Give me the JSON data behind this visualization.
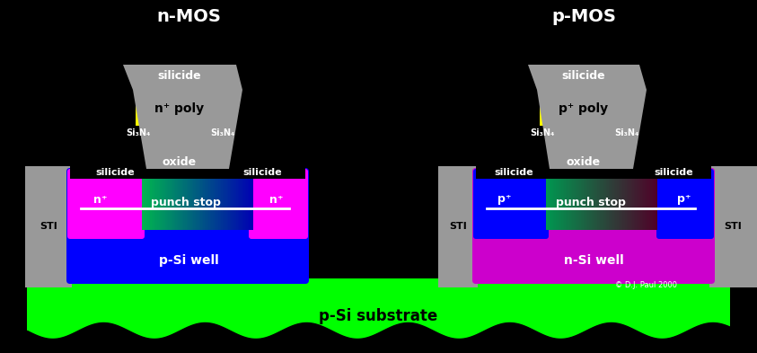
{
  "bg_color": "#000000",
  "substrate_color": "#00ff00",
  "nmos_well_color": "#0000ff",
  "pmos_well_color": "#cc00cc",
  "magenta_color": "#ff00ff",
  "blue_color": "#0000ff",
  "gray_color": "#999999",
  "yellow_color": "#ffff00",
  "nmos_title": "n-MOS",
  "pmos_title": "p-MOS",
  "substrate_label": "p-Si substrate",
  "nmos_well_label": "p-Si well",
  "pmos_well_label": "n-Si well",
  "punch_stop_label": "punch stop",
  "n_poly_label": "n⁺ poly",
  "p_poly_label": "p⁺ poly",
  "silicide_label": "silicide",
  "oxide_label": "oxide",
  "sin_label": "Si₃N₄",
  "sti_label": "STI",
  "n_plus_label": "n⁺",
  "p_plus_label": "p⁺",
  "copyright": "© D.J. Paul 2000"
}
